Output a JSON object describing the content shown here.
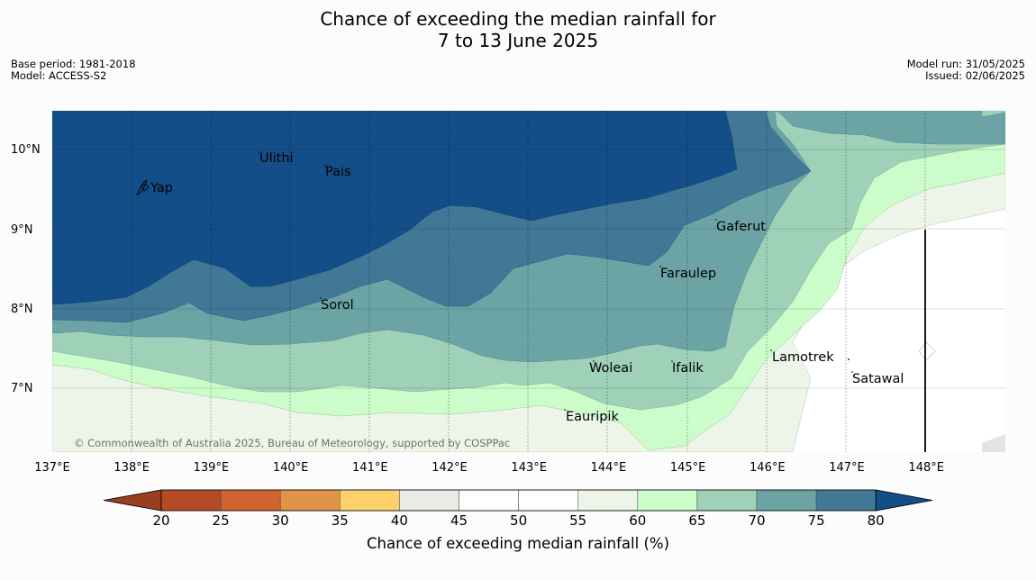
{
  "header": {
    "title_line1": "Chance of exceeding the median rainfall for",
    "title_line2": "7 to 13 June 2025",
    "base_period": "Base period: 1981-2018",
    "model": "Model: ACCESS-S2",
    "model_run": "Model run: 31/05/2025",
    "issued": "Issued: 02/06/2025"
  },
  "map": {
    "copyright": "© Commonwealth of Australia 2025, Bureau of Meteorology, supported by COSPPac",
    "lon_labels": [
      "137°E",
      "138°E",
      "139°E",
      "140°E",
      "141°E",
      "142°E",
      "143°E",
      "144°E",
      "145°E",
      "146°E",
      "147°E",
      "148°E"
    ],
    "lat_labels": [
      "10°N",
      "9°N",
      "8°N",
      "7°N"
    ],
    "places": [
      "Ulithi",
      "Pais",
      "Yap",
      "Gaferut",
      "Faraulep",
      "Sorol",
      "Lamotrek",
      "Woleai",
      "Ifalik",
      "Satawal",
      "Eauripik"
    ]
  },
  "colorbar": {
    "ticks": [
      "20",
      "25",
      "30",
      "35",
      "40",
      "45",
      "50",
      "55",
      "60",
      "65",
      "70",
      "75",
      "80"
    ],
    "colors": [
      "#b44b26",
      "#cf6431",
      "#e19447",
      "#fdd26d",
      "#ebeae4",
      "#ffffff",
      "#ffffff",
      "#ecf5e8",
      "#ccfcca",
      "#9ed1b8",
      "#6ca4a6",
      "#417896",
      "#144e88"
    ],
    "label": "Chance of exceeding median rainfall (%)"
  }
}
